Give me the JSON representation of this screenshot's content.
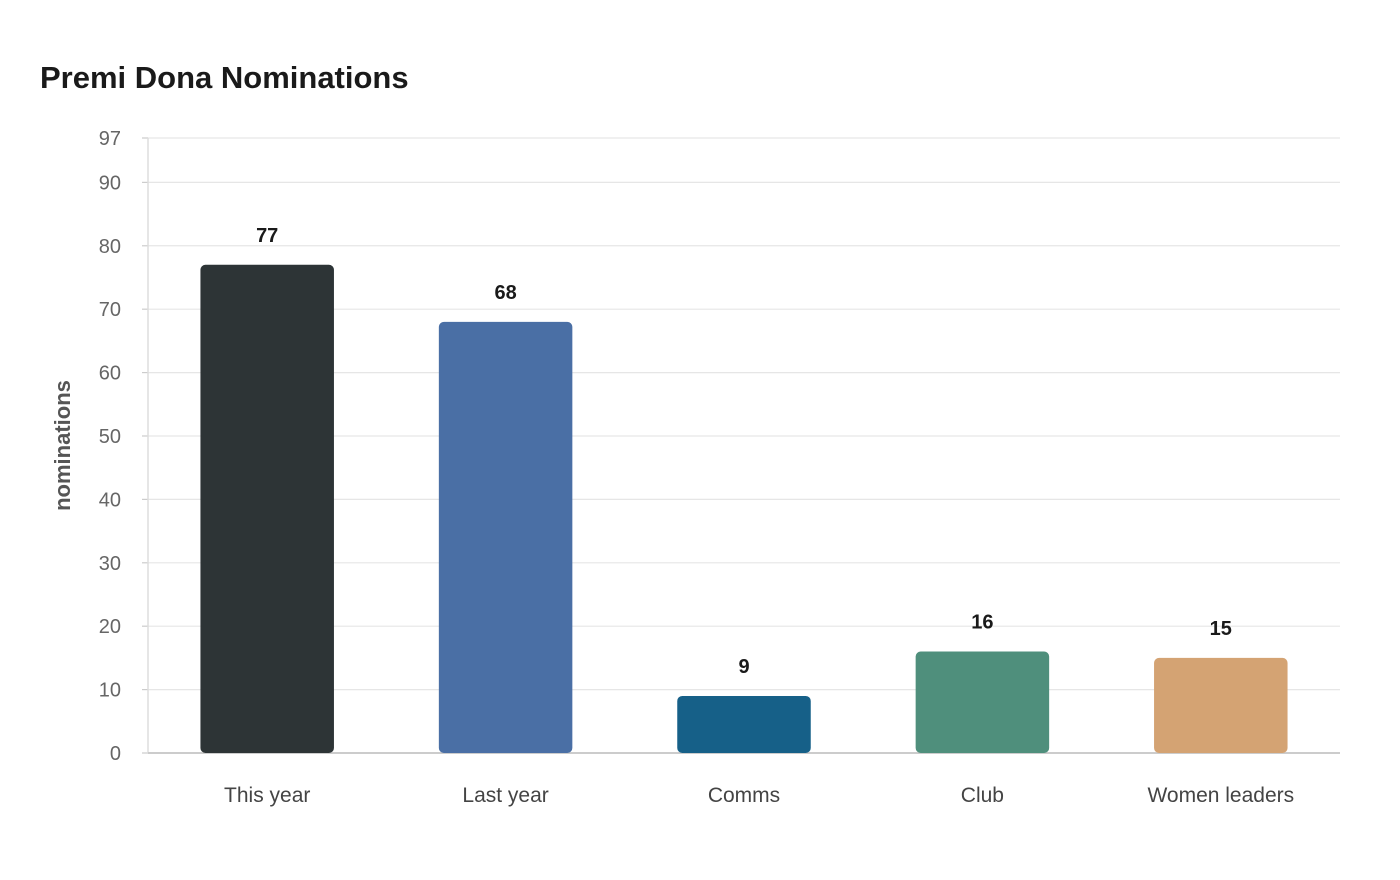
{
  "chart_data": {
    "type": "bar",
    "title": "Premi Dona Nominations",
    "xlabel": "",
    "ylabel": "nominations",
    "categories": [
      "This year",
      "Last year",
      "Comms",
      "Club",
      "Women leaders"
    ],
    "values": [
      77,
      68,
      9,
      16,
      15
    ],
    "colors": [
      "#2d3436",
      "#4a6fa5",
      "#166088",
      "#4f8f7c",
      "#d4a373"
    ],
    "ylim": [
      0,
      97
    ],
    "yticks": [
      0,
      10,
      20,
      30,
      40,
      50,
      60,
      70,
      80,
      90,
      97
    ],
    "grid": true,
    "data_labels": true
  }
}
